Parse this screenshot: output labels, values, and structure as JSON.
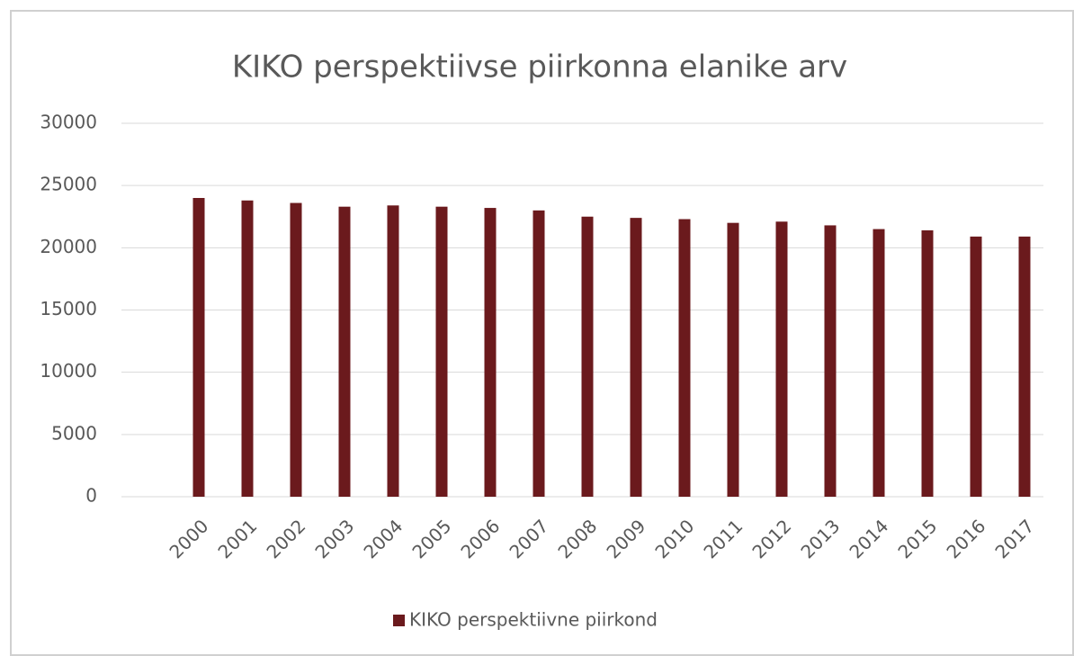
{
  "chart_data": {
    "type": "bar",
    "title": "KIKO perspektiivse piirkonna elanike arv",
    "categories": [
      "2000",
      "2001",
      "2002",
      "2003",
      "2004",
      "2005",
      "2006",
      "2007",
      "2008",
      "2009",
      "2010",
      "2011",
      "2012",
      "2013",
      "2014",
      "2015",
      "2016",
      "2017"
    ],
    "series": [
      {
        "name": "KIKO perspektiivne piirkond",
        "color": "#6b1a1d",
        "values": [
          24000,
          23800,
          23600,
          23300,
          23400,
          23300,
          23200,
          23000,
          22500,
          22400,
          22300,
          22000,
          22100,
          21800,
          21500,
          21400,
          20900,
          20900
        ]
      }
    ],
    "ylim": [
      0,
      30000
    ],
    "yticks": [
      0,
      5000,
      10000,
      15000,
      20000,
      25000,
      30000
    ],
    "grid": true,
    "legend": "bottom"
  }
}
